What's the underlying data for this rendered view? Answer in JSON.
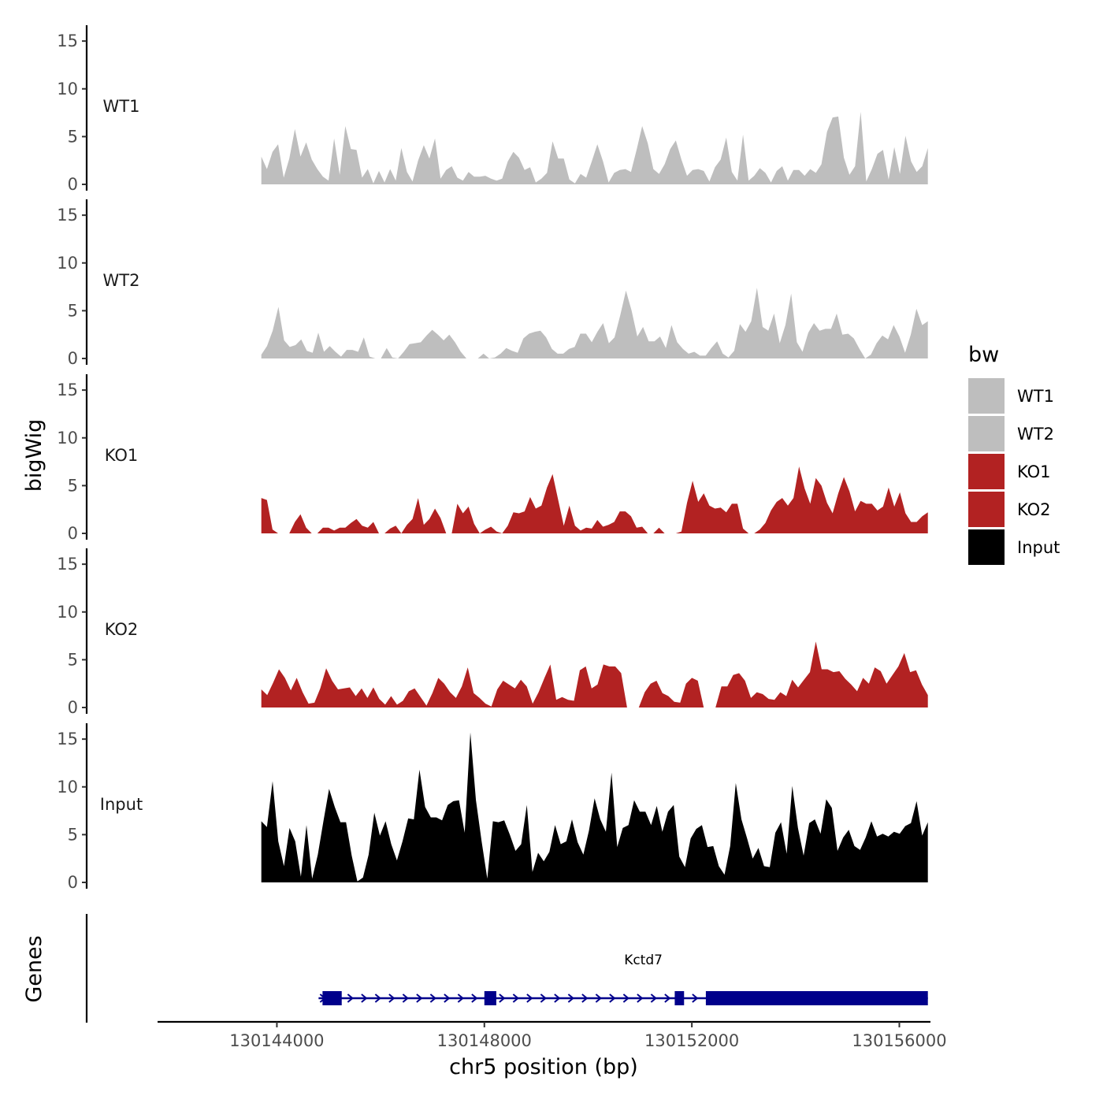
{
  "chart_data": {
    "type": "area",
    "xlabel": "chr5 position (bp)",
    "ylabel": "bigWig",
    "genes_label": "Genes",
    "xlim": [
      130141700,
      130156600
    ],
    "x_ticks": [
      {
        "value": 130144000,
        "label": "130144000"
      },
      {
        "value": 130148000,
        "label": "130148000"
      },
      {
        "value": 130152000,
        "label": "130152000"
      },
      {
        "value": 130156000,
        "label": "130156000"
      }
    ],
    "region_start": 130143700,
    "region_end": 130156550,
    "ylim": [
      0,
      16
    ],
    "y_ticks": [
      0,
      5,
      10,
      15
    ],
    "legend": {
      "title": "bw",
      "entries": [
        {
          "label": "WT1",
          "color": "#bebebe"
        },
        {
          "label": "WT2",
          "color": "#bebebe"
        },
        {
          "label": "KO1",
          "color": "#b22222"
        },
        {
          "label": "KO2",
          "color": "#b22222"
        },
        {
          "label": "Input",
          "color": "#000000"
        }
      ]
    },
    "tracks": [
      {
        "name": "WT1",
        "color": "#bebebe",
        "values": [
          2.9,
          1.6,
          3.4,
          4.2,
          0.7,
          2.7,
          5.8,
          2.9,
          4.4,
          2.6,
          1.6,
          0.8,
          0.4,
          4.8,
          1.0,
          6.1,
          3.7,
          3.6,
          0.7,
          1.6,
          0.1,
          1.4,
          0.2,
          1.6,
          0.4,
          3.8,
          1.3,
          0.3,
          2.5,
          4.1,
          2.7,
          4.8,
          0.6,
          1.5,
          1.9,
          0.7,
          0.4,
          1.3,
          0.8,
          0.8,
          0.9,
          0.6,
          0.4,
          0.6,
          2.4,
          3.4,
          2.8,
          1.5,
          1.8,
          0.2,
          0.6,
          1.2,
          4.5,
          2.7,
          2.7,
          0.5,
          0.1,
          1.1,
          0.7,
          2.4,
          4.2,
          2.4,
          0.2,
          1.2,
          1.5,
          1.6,
          1.3,
          3.6,
          6.1,
          4.3,
          1.6,
          1.1,
          2.1,
          3.7,
          4.6,
          2.6,
          0.9,
          1.5,
          1.6,
          1.4,
          0.3,
          1.8,
          2.6,
          4.9,
          1.3,
          0.4,
          5.2,
          0.4,
          0.9,
          1.7,
          1.2,
          0.2,
          1.4,
          1.9,
          0.4,
          1.5,
          1.5,
          0.9,
          1.6,
          1.2,
          2.1,
          5.5,
          7.0,
          7.1,
          2.8,
          1.0,
          1.9,
          7.6,
          0.3,
          1.6,
          3.2,
          3.6,
          0.5,
          3.9,
          1.1,
          5.1,
          2.4,
          1.3,
          1.9,
          3.8
        ]
      },
      {
        "name": "WT2",
        "color": "#bebebe",
        "values": [
          0.4,
          1.3,
          2.9,
          5.4,
          1.9,
          1.2,
          1.4,
          2.0,
          0.8,
          0.6,
          2.7,
          0.7,
          1.3,
          0.7,
          0.2,
          0.9,
          0.9,
          0.7,
          2.2,
          0.2,
          0,
          0,
          1.1,
          0.1,
          0,
          0.7,
          1.5,
          1.6,
          1.7,
          2.4,
          3.0,
          2.5,
          1.9,
          2.5,
          1.7,
          0.7,
          0,
          0,
          0,
          0.5,
          0,
          0.1,
          0.5,
          1.1,
          0.8,
          0.6,
          2.1,
          2.6,
          2.8,
          2.9,
          2.2,
          1.0,
          0.5,
          0.5,
          1.0,
          1.2,
          2.6,
          2.6,
          1.7,
          2.8,
          3.7,
          1.6,
          2.2,
          4.5,
          7.1,
          5.0,
          2.3,
          3.3,
          1.8,
          1.8,
          2.3,
          1.1,
          3.5,
          1.7,
          1.0,
          0.5,
          0.7,
          0.3,
          0.3,
          1.1,
          1.8,
          0.5,
          0.1,
          0.8,
          3.6,
          2.8,
          3.9,
          7.4,
          3.3,
          2.9,
          4.7,
          1.6,
          3.5,
          6.8,
          1.7,
          0.7,
          2.7,
          3.7,
          2.9,
          3.1,
          3.1,
          4.7,
          2.5,
          2.6,
          2.1,
          1.0,
          0,
          0.4,
          1.6,
          2.4,
          2.0,
          3.5,
          2.3,
          0.6,
          2.5,
          5.2,
          3.5,
          3.9
        ]
      },
      {
        "name": "KO1",
        "color": "#b22222",
        "values": [
          3.7,
          3.5,
          0.4,
          0,
          0,
          0,
          1.2,
          2.0,
          0.6,
          0,
          0,
          0.6,
          0.6,
          0.3,
          0.6,
          0.6,
          1.1,
          1.5,
          0.8,
          0.6,
          1.2,
          0,
          0,
          0.5,
          0.8,
          0,
          0.9,
          1.5,
          3.7,
          0.9,
          1.5,
          2.6,
          1.6,
          0,
          0,
          3.1,
          2.1,
          2.8,
          1.0,
          0,
          0.4,
          0.7,
          0.2,
          0,
          0.8,
          2.2,
          2.1,
          2.3,
          3.8,
          2.6,
          2.9,
          4.8,
          6.2,
          3.5,
          0.8,
          2.9,
          0.8,
          0.3,
          0.6,
          0.5,
          1.4,
          0.7,
          0.9,
          1.2,
          2.3,
          2.3,
          1.8,
          0.6,
          0.7,
          0,
          0,
          0.6,
          0,
          0,
          0,
          0.2,
          3.2,
          5.5,
          3.3,
          4.2,
          2.9,
          2.6,
          2.7,
          2.2,
          3.1,
          3.1,
          0.5,
          0,
          0,
          0.4,
          1.1,
          2.4,
          3.3,
          3.7,
          2.9,
          3.7,
          7.0,
          4.7,
          3.1,
          5.8,
          5.0,
          3.2,
          2.1,
          4.2,
          5.9,
          4.4,
          2.3,
          3.4,
          3.1,
          3.1,
          2.4,
          2.8,
          4.8,
          2.8,
          4.3,
          2.1,
          1.2,
          1.2,
          1.8,
          2.2
        ]
      },
      {
        "name": "KO2",
        "color": "#b22222",
        "values": [
          1.9,
          1.3,
          2.6,
          4.0,
          3.1,
          1.8,
          3.1,
          1.6,
          0.4,
          0.5,
          2.0,
          4.1,
          2.8,
          1.9,
          2.0,
          2.1,
          1.2,
          2.0,
          1.0,
          2.1,
          0.9,
          0.3,
          1.2,
          0.3,
          0.7,
          1.7,
          2.0,
          1.1,
          0.2,
          1.5,
          3.1,
          2.5,
          1.6,
          1.0,
          2.2,
          4.2,
          1.5,
          1.0,
          0.4,
          0.1,
          1.9,
          2.8,
          2.4,
          2.0,
          2.9,
          2.2,
          0.4,
          1.6,
          3.1,
          4.5,
          0.8,
          1.1,
          0.8,
          0.7,
          3.9,
          4.3,
          2.0,
          2.4,
          4.5,
          4.3,
          4.3,
          3.6,
          0,
          0,
          0,
          1.6,
          2.5,
          2.8,
          1.5,
          1.2,
          0.6,
          0.5,
          2.5,
          3.1,
          2.8,
          0,
          0,
          0,
          2.2,
          2.2,
          3.4,
          3.6,
          2.8,
          1.0,
          1.6,
          1.4,
          0.9,
          0.8,
          1.6,
          1.2,
          2.9,
          2.1,
          2.9,
          3.7,
          6.9,
          4.0,
          4.0,
          3.7,
          3.8,
          3.0,
          2.4,
          1.7,
          3.1,
          2.5,
          4.2,
          3.8,
          2.5,
          3.4,
          4.3,
          5.7,
          3.7,
          3.9,
          2.4,
          1.3
        ]
      },
      {
        "name": "Input",
        "color": "#000000",
        "values": [
          6.4,
          5.8,
          10.6,
          4.3,
          1.7,
          5.7,
          4.3,
          0.6,
          6.0,
          0.4,
          2.9,
          6.4,
          9.8,
          7.9,
          6.3,
          6.3,
          2.8,
          0.1,
          0.5,
          2.9,
          7.3,
          4.9,
          6.4,
          4.0,
          2.3,
          4.3,
          6.7,
          6.6,
          11.8,
          7.9,
          6.8,
          6.8,
          6.5,
          8.1,
          8.5,
          8.6,
          5.2,
          15.7,
          8.6,
          4.3,
          0.4,
          6.4,
          6.3,
          6.5,
          5.0,
          3.3,
          4.0,
          8.1,
          1.1,
          3.1,
          2.2,
          3.2,
          6.0,
          4.0,
          4.3,
          6.6,
          4.2,
          2.9,
          5.4,
          8.8,
          6.6,
          5.3,
          11.5,
          3.7,
          5.7,
          6.0,
          8.6,
          7.4,
          7.4,
          6.0,
          8.0,
          5.3,
          7.4,
          8.1,
          2.7,
          1.6,
          4.6,
          5.6,
          6.0,
          3.7,
          3.8,
          1.7,
          0.8,
          3.8,
          10.4,
          6.6,
          4.6,
          2.5,
          3.6,
          1.7,
          1.6,
          5.2,
          6.3,
          3.0,
          10.1,
          5.7,
          2.8,
          6.2,
          6.6,
          5.1,
          8.7,
          7.8,
          3.3,
          4.7,
          5.5,
          3.8,
          3.4,
          4.7,
          6.4,
          4.8,
          5.1,
          4.8,
          5.3,
          5.1,
          5.9,
          6.2,
          8.5,
          4.9,
          6.3
        ]
      }
    ],
    "gene": {
      "name": "Kctd7",
      "start": 130144880,
      "end": 130156550,
      "strand": "+",
      "exons": [
        {
          "start": 130144880,
          "end": 130145250
        },
        {
          "start": 130148000,
          "end": 130148230
        },
        {
          "start": 130151670,
          "end": 130151850
        },
        {
          "start": 130152270,
          "end": 130156550
        }
      ]
    }
  }
}
